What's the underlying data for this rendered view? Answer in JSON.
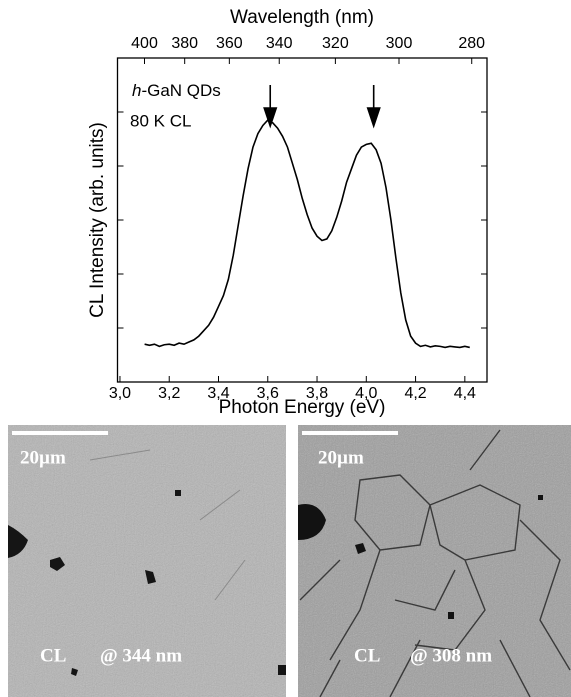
{
  "chart_data": {
    "type": "line",
    "title": "Wavelength (nm)",
    "xlabel": "Photon Energy (eV)",
    "ylabel": "CL Intensity (arb. units)",
    "annotations": [
      "h",
      "-GaN QDs",
      "80 K CL"
    ],
    "arrows": [
      3.61,
      4.03
    ],
    "color": "#000000",
    "xlim": [
      2.99,
      4.49
    ],
    "ylim": [
      0,
      6
    ],
    "xticks": [
      {
        "value": 3.0,
        "label": "3,0"
      },
      {
        "value": 3.2,
        "label": "3,2"
      },
      {
        "value": 3.4,
        "label": "3,4"
      },
      {
        "value": 3.6,
        "label": "3,6"
      },
      {
        "value": 3.8,
        "label": "3,8"
      },
      {
        "value": 4.0,
        "label": "4,0"
      },
      {
        "value": 4.2,
        "label": "4,2"
      },
      {
        "value": 4.4,
        "label": "4,4"
      }
    ],
    "yticks": [
      1,
      2,
      3,
      4,
      5
    ],
    "x2ticks": [
      400,
      380,
      360,
      340,
      320,
      300,
      280
    ],
    "x": [
      3.1,
      3.12,
      3.14,
      3.16,
      3.18,
      3.2,
      3.22,
      3.24,
      3.26,
      3.28,
      3.3,
      3.32,
      3.34,
      3.36,
      3.38,
      3.4,
      3.42,
      3.44,
      3.46,
      3.48,
      3.5,
      3.52,
      3.54,
      3.56,
      3.58,
      3.6,
      3.62,
      3.64,
      3.66,
      3.68,
      3.7,
      3.72,
      3.74,
      3.76,
      3.78,
      3.8,
      3.82,
      3.84,
      3.86,
      3.88,
      3.9,
      3.92,
      3.94,
      3.96,
      3.98,
      4.0,
      4.02,
      4.04,
      4.06,
      4.08,
      4.1,
      4.12,
      4.14,
      4.16,
      4.18,
      4.2,
      4.22,
      4.24,
      4.26,
      4.28,
      4.3,
      4.32,
      4.34,
      4.36,
      4.38,
      4.4,
      4.42
    ],
    "values": [
      0.7,
      0.68,
      0.7,
      0.66,
      0.69,
      0.7,
      0.68,
      0.72,
      0.7,
      0.74,
      0.78,
      0.85,
      0.95,
      1.05,
      1.2,
      1.4,
      1.6,
      1.9,
      2.35,
      2.9,
      3.45,
      3.95,
      4.35,
      4.6,
      4.75,
      4.85,
      4.8,
      4.7,
      4.55,
      4.35,
      4.05,
      3.75,
      3.4,
      3.1,
      2.85,
      2.7,
      2.62,
      2.65,
      2.8,
      3.05,
      3.35,
      3.7,
      3.95,
      4.2,
      4.35,
      4.4,
      4.42,
      4.3,
      4.05,
      3.6,
      3.0,
      2.3,
      1.65,
      1.15,
      0.85,
      0.72,
      0.66,
      0.68,
      0.65,
      0.67,
      0.66,
      0.64,
      0.66,
      0.65,
      0.64,
      0.66,
      0.64
    ]
  },
  "images": [
    {
      "scale": "20µm",
      "label": "CL",
      "wavelength": "@ 344 nm"
    },
    {
      "scale": "20µm",
      "label": "CL",
      "wavelength": "@ 308 nm"
    }
  ]
}
